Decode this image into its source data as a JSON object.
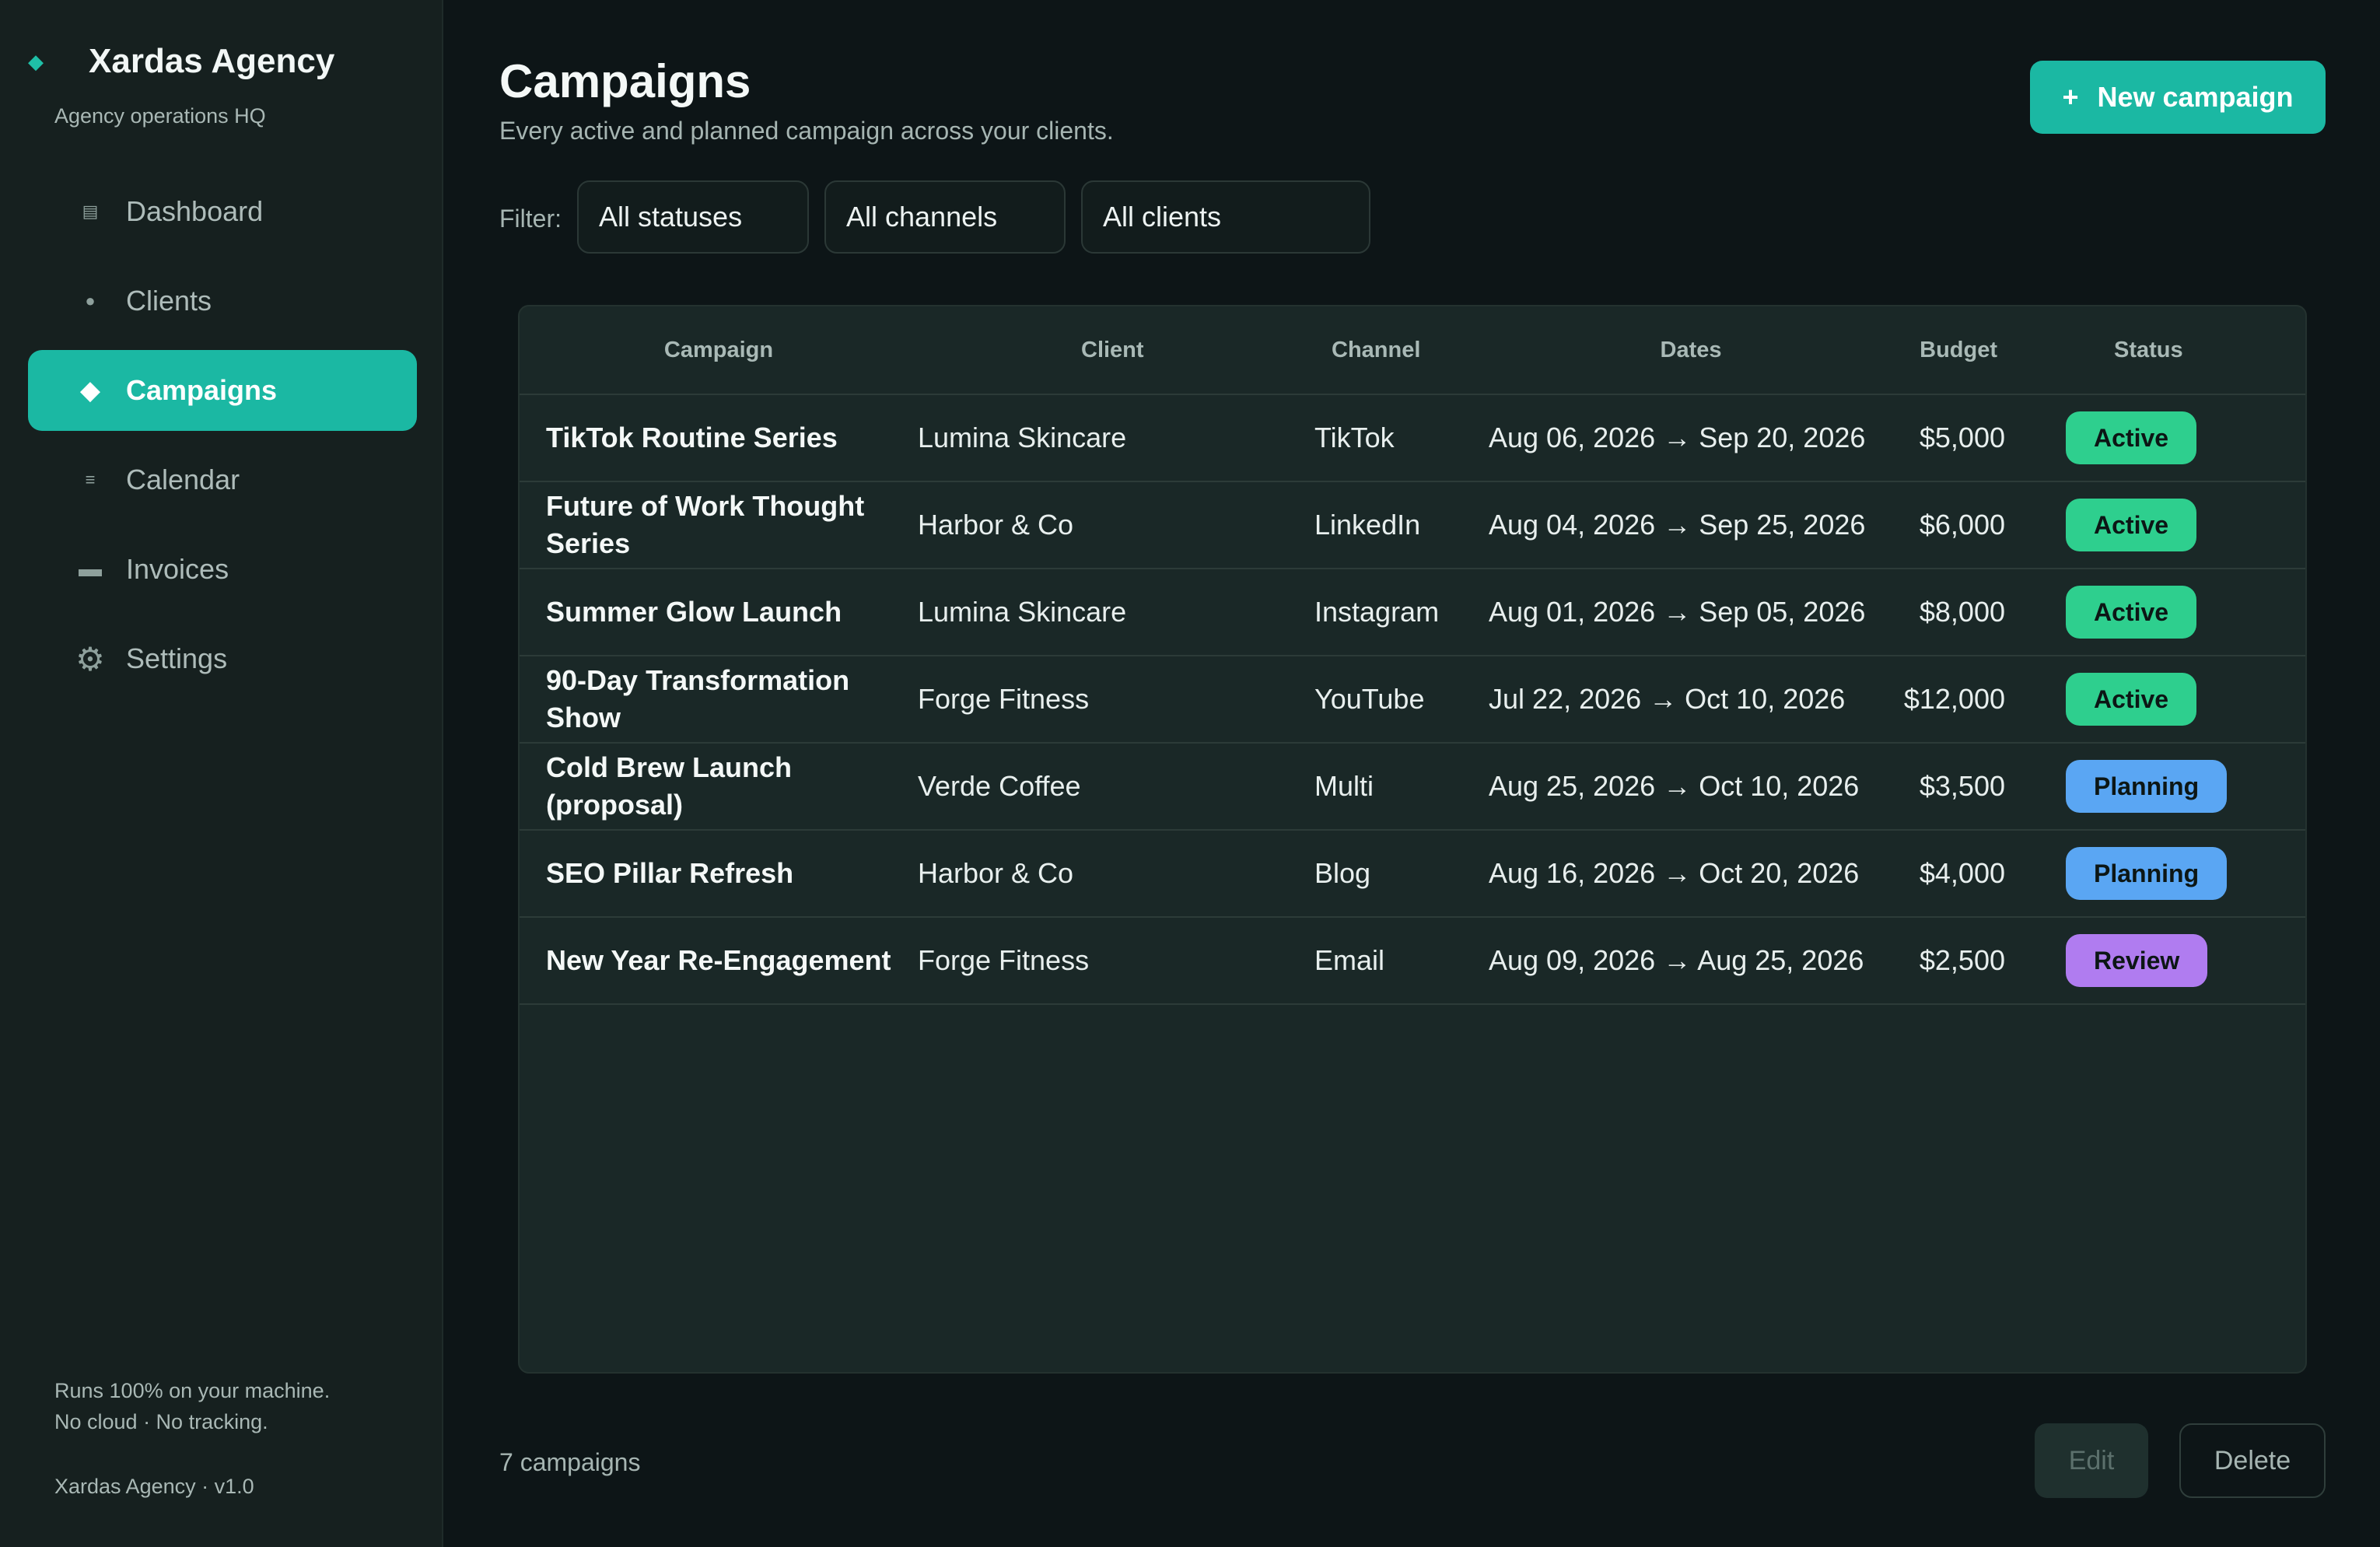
{
  "sidebar": {
    "brand_icon": "diamond-icon",
    "brand_name": "Xardas Agency",
    "brand_sub": "Agency operations HQ",
    "items": [
      {
        "label": "Dashboard",
        "icon": "dashboard-icon",
        "active": false
      },
      {
        "label": "Clients",
        "icon": "clients-icon",
        "active": false
      },
      {
        "label": "Campaigns",
        "icon": "campaigns-icon",
        "active": true
      },
      {
        "label": "Calendar",
        "icon": "calendar-icon",
        "active": false
      },
      {
        "label": "Invoices",
        "icon": "invoices-icon",
        "active": false
      },
      {
        "label": "Settings",
        "icon": "gear-icon",
        "active": false
      }
    ],
    "footer_line1": "Runs 100% on your machine.",
    "footer_line2": "No cloud · No tracking.",
    "version": "Xardas Agency · v1.0"
  },
  "header": {
    "title": "Campaigns",
    "subtitle": "Every active and planned campaign across your clients.",
    "new_button_plus": "+",
    "new_button_label": "New campaign"
  },
  "filters": {
    "label": "Filter:",
    "status": "All statuses",
    "channel": "All channels",
    "client": "All clients"
  },
  "table": {
    "columns": [
      "Campaign",
      "Client",
      "Channel",
      "Dates",
      "Budget",
      "Status"
    ],
    "rows": [
      {
        "campaign": "TikTok Routine Series",
        "client": "Lumina Skincare",
        "channel": "TikTok",
        "dates": "Aug 06, 2026 → Sep 20, 2026",
        "budget": "$5,000",
        "status": "Active"
      },
      {
        "campaign": "Future of Work Thought Series",
        "client": "Harbor & Co",
        "channel": "LinkedIn",
        "dates": "Aug 04, 2026 → Sep 25, 2026",
        "budget": "$6,000",
        "status": "Active"
      },
      {
        "campaign": "Summer Glow Launch",
        "client": "Lumina Skincare",
        "channel": "Instagram",
        "dates": "Aug 01, 2026 → Sep 05, 2026",
        "budget": "$8,000",
        "status": "Active"
      },
      {
        "campaign": "90-Day Transformation Show",
        "client": "Forge Fitness",
        "channel": "YouTube",
        "dates": "Jul 22, 2026 → Oct 10, 2026",
        "budget": "$12,000",
        "status": "Active"
      },
      {
        "campaign": "Cold Brew Launch (proposal)",
        "client": "Verde Coffee",
        "channel": "Multi",
        "dates": "Aug 25, 2026 → Oct 10, 2026",
        "budget": "$3,500",
        "status": "Planning"
      },
      {
        "campaign": "SEO Pillar Refresh",
        "client": "Harbor & Co",
        "channel": "Blog",
        "dates": "Aug 16, 2026 → Oct 20, 2026",
        "budget": "$4,000",
        "status": "Planning"
      },
      {
        "campaign": "New Year Re-Engagement",
        "client": "Forge Fitness",
        "channel": "Email",
        "dates": "Aug 09, 2026 → Aug 25, 2026",
        "budget": "$2,500",
        "status": "Review"
      }
    ]
  },
  "status_colors": {
    "Active": "#2ecf8e",
    "Planning": "#5aa6f3",
    "Review": "#b07cf0"
  },
  "colors": {
    "accent": "#1bb8a3",
    "background": "#0d1517",
    "sidebar": "#16201f"
  },
  "footer": {
    "count": "7 campaigns",
    "edit_label": "Edit",
    "delete_label": "Delete"
  }
}
